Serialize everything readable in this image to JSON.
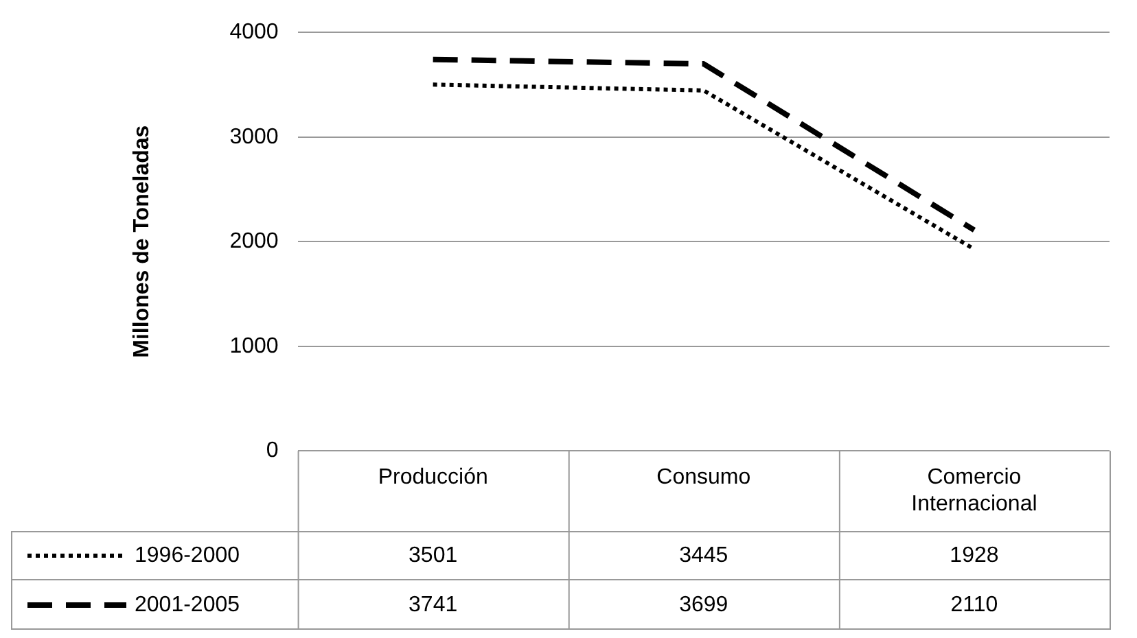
{
  "chart_data": {
    "type": "line",
    "ylabel": "Millones de Toneladas",
    "categories": [
      "Producción",
      "Consumo",
      "Comercio Internacional"
    ],
    "series": [
      {
        "name": "1996-2000",
        "color": "#000000",
        "line_style": "dotted",
        "values": [
          3501,
          3445,
          1928
        ]
      },
      {
        "name": "2001-2005",
        "color": "#000000",
        "line_style": "dashed",
        "values": [
          3741,
          3699,
          2110
        ]
      }
    ],
    "ylim": [
      0,
      4000
    ],
    "yticks": [
      0,
      1000,
      2000,
      3000,
      4000
    ],
    "grid": "y",
    "legend": "bottom left",
    "marker": "none",
    "data_labels": true
  }
}
